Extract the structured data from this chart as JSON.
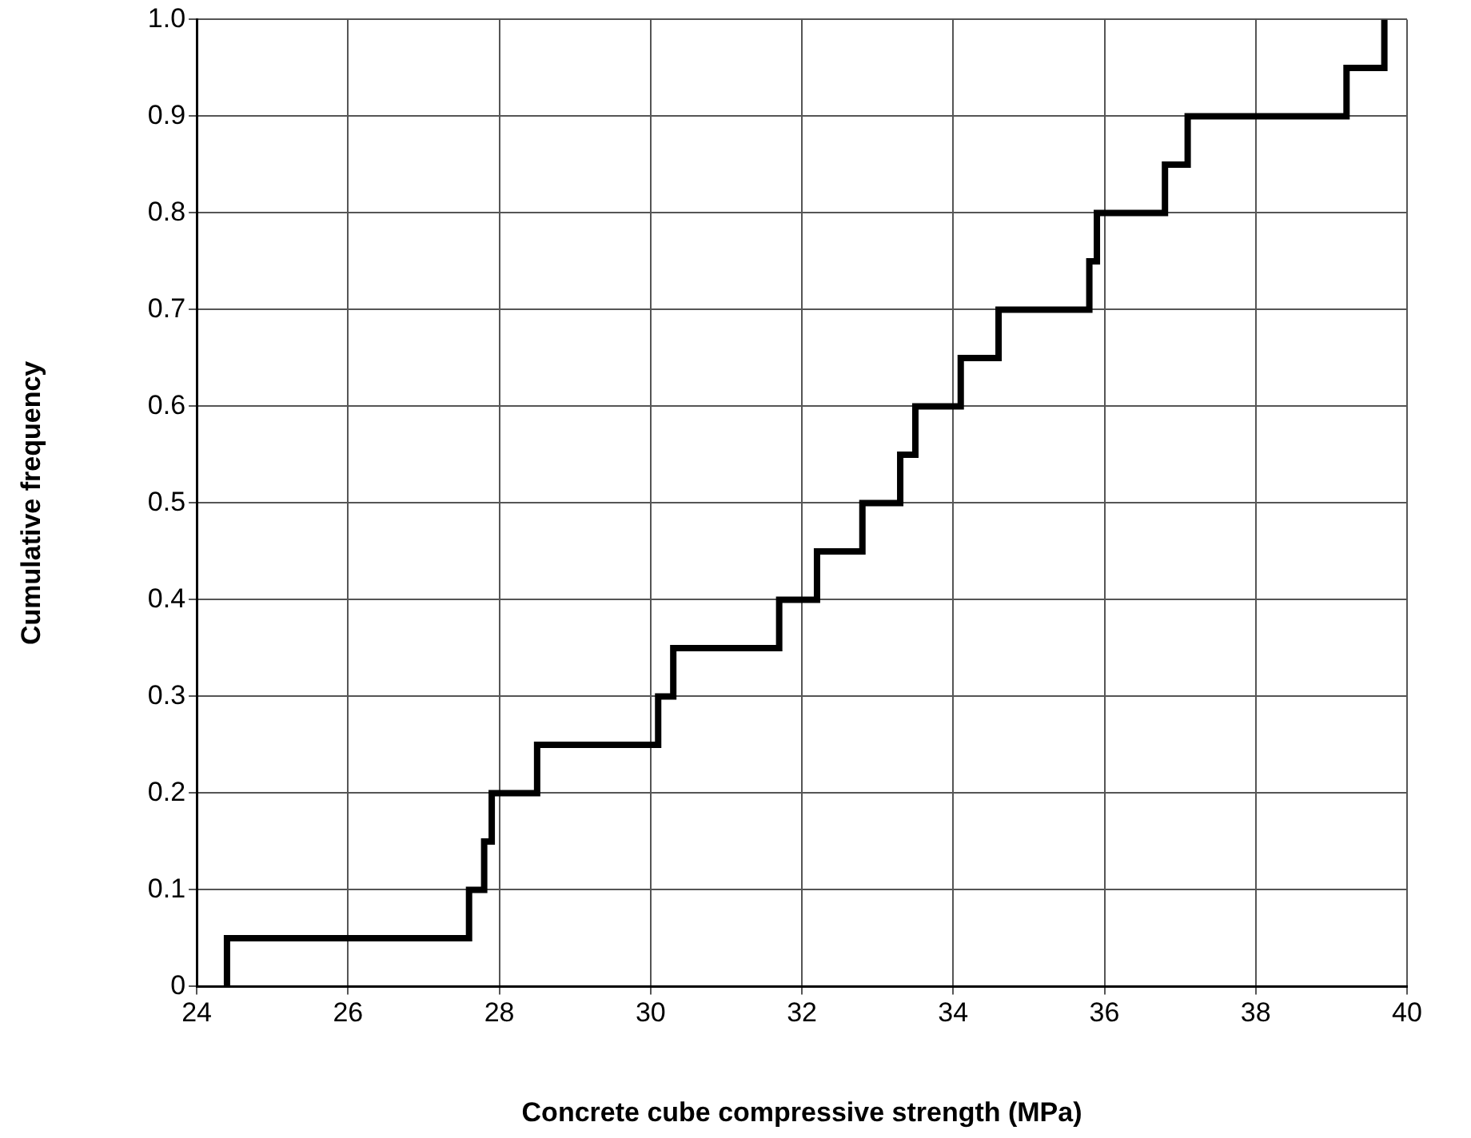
{
  "chart_data": {
    "type": "step",
    "xlabel": "Concrete cube compressive strength (MPa)",
    "ylabel": "Cumulative frequency",
    "x": [
      24.4,
      24.4,
      27.6,
      27.8,
      27.9,
      28.5,
      30.1,
      30.3,
      31.7,
      32.2,
      32.8,
      33.3,
      33.5,
      34.1,
      34.6,
      35.8,
      35.9,
      36.8,
      37.1,
      39.2,
      39.7
    ],
    "series": [
      {
        "color": "#000000",
        "values": [
          0,
          0.05,
          0.1,
          0.15,
          0.2,
          0.25,
          0.3,
          0.35,
          0.4,
          0.45,
          0.5,
          0.55,
          0.6,
          0.65,
          0.7,
          0.75,
          0.8,
          0.85,
          0.9,
          0.95,
          1.0
        ]
      }
    ],
    "xlim": [
      24,
      40
    ],
    "xticks": [
      24,
      26,
      28,
      30,
      32,
      34,
      36,
      38,
      40
    ],
    "ylim": [
      0,
      1
    ],
    "yticks": [
      0,
      0.1,
      0.2,
      0.3,
      0.4,
      0.5,
      0.6,
      0.7,
      0.8,
      0.9,
      {
        "value": 1,
        "label": "1.0"
      }
    ],
    "grid": true,
    "legend": false,
    "marker": "none",
    "line_style": "solid"
  }
}
